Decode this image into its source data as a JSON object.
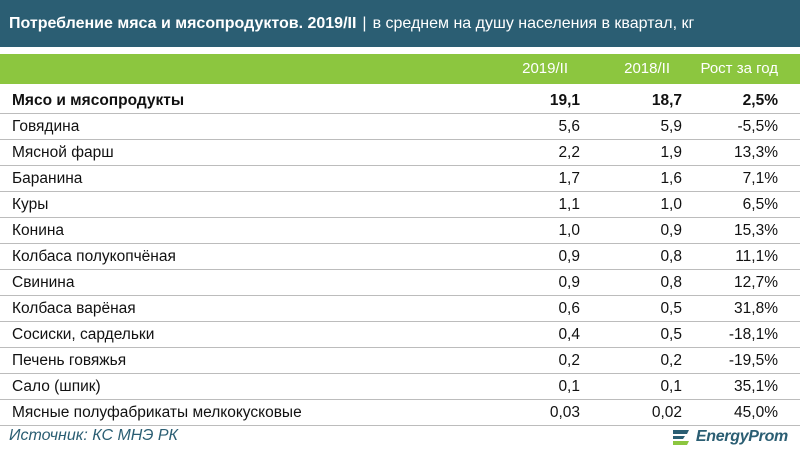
{
  "header": {
    "title": "Потребление мяса и мясопродуктов. 2019/II",
    "separator": "|",
    "subtitle": "в среднем на душу населения в квартал, кг"
  },
  "columns": {
    "c1": "2019/II",
    "c2": "2018/II",
    "c3": "Рост за год"
  },
  "rows": [
    {
      "label": "Мясо и мясопродукты",
      "v1": "19,1",
      "v2": "18,7",
      "v3": "2,5%"
    },
    {
      "label": "Говядина",
      "v1": "5,6",
      "v2": "5,9",
      "v3": "-5,5%"
    },
    {
      "label": "Мясной фарш",
      "v1": "2,2",
      "v2": "1,9",
      "v3": "13,3%"
    },
    {
      "label": "Баранина",
      "v1": "1,7",
      "v2": "1,6",
      "v3": "7,1%"
    },
    {
      "label": "Куры",
      "v1": "1,1",
      "v2": "1,0",
      "v3": "6,5%"
    },
    {
      "label": "Конина",
      "v1": "1,0",
      "v2": "0,9",
      "v3": "15,3%"
    },
    {
      "label": "Колбаса полукопчёная",
      "v1": "0,9",
      "v2": "0,8",
      "v3": "11,1%"
    },
    {
      "label": "Свинина",
      "v1": "0,9",
      "v2": "0,8",
      "v3": "12,7%"
    },
    {
      "label": "Колбаса варёная",
      "v1": "0,6",
      "v2": "0,5",
      "v3": "31,8%"
    },
    {
      "label": "Сосиски, сардельки",
      "v1": "0,4",
      "v2": "0,5",
      "v3": "-18,1%"
    },
    {
      "label": "Печень говяжья",
      "v1": "0,2",
      "v2": "0,2",
      "v3": "-19,5%"
    },
    {
      "label": "Сало (шпик)",
      "v1": "0,1",
      "v2": "0,1",
      "v3": "35,1%"
    },
    {
      "label": "Мясные полуфабрикаты мелкокусковые",
      "v1": "0,03",
      "v2": "0,02",
      "v3": "45,0%"
    }
  ],
  "footer": {
    "source": "Источник: КС МНЭ РК",
    "brand": "EnergyProm",
    "brand_icon": "energyprom-logo-icon"
  },
  "colors": {
    "title_bg": "#2b5e73",
    "header_bg": "#8cc63f",
    "source_text": "#2b5e73"
  }
}
